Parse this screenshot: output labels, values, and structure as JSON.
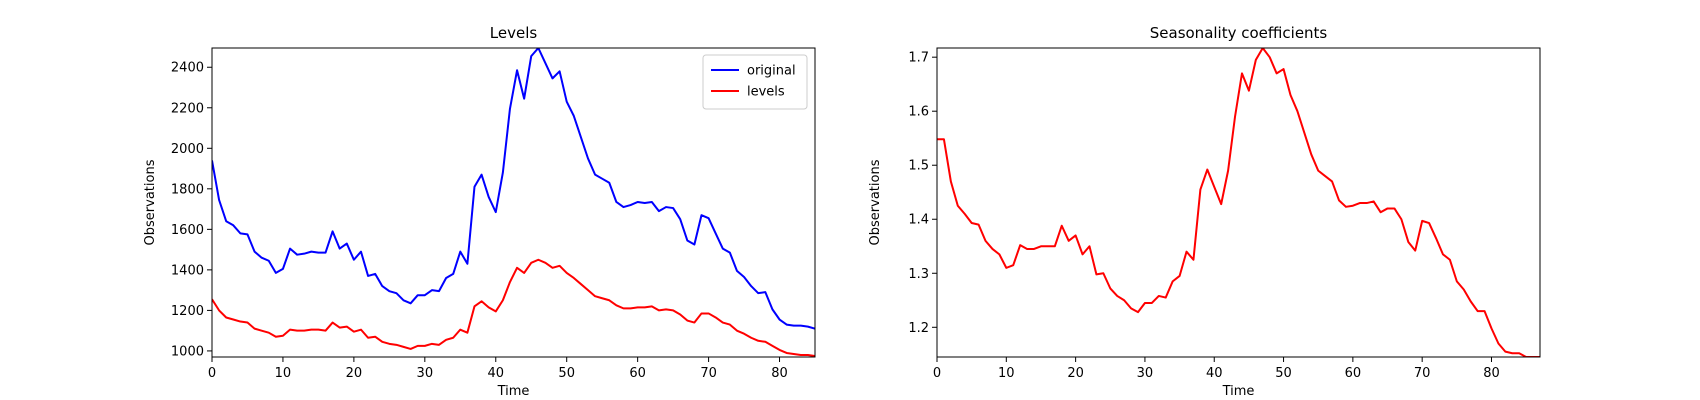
{
  "chart_data": [
    {
      "type": "line",
      "title": "Levels",
      "xlabel": "Time",
      "ylabel": "Observations",
      "xlim": [
        0,
        85
      ],
      "ylim": [
        970,
        2495
      ],
      "xticks": [
        0,
        10,
        20,
        30,
        40,
        50,
        60,
        70,
        80
      ],
      "yticks": [
        1000,
        1200,
        1400,
        1600,
        1800,
        2000,
        2200,
        2400
      ],
      "grid": false,
      "legend": "top-right",
      "series": [
        {
          "name": "original",
          "color": "#0000ff",
          "x": [
            0,
            1,
            2,
            3,
            4,
            5,
            6,
            7,
            8,
            9,
            10,
            11,
            12,
            13,
            14,
            15,
            16,
            17,
            18,
            19,
            20,
            21,
            22,
            23,
            24,
            25,
            26,
            27,
            28,
            29,
            30,
            31,
            32,
            33,
            34,
            35,
            36,
            37,
            38,
            39,
            40,
            41,
            42,
            43,
            44,
            45,
            46,
            47,
            48,
            49,
            50,
            51,
            52,
            53,
            54,
            55,
            56,
            57,
            58,
            59,
            60,
            61,
            62,
            63,
            64,
            65,
            66,
            67,
            68,
            69,
            70,
            71,
            72,
            73,
            74,
            75,
            76,
            77,
            78,
            79,
            80,
            81,
            82,
            83,
            84,
            85
          ],
          "values": [
            1940,
            1745,
            1640,
            1620,
            1580,
            1575,
            1490,
            1460,
            1445,
            1385,
            1405,
            1505,
            1475,
            1480,
            1490,
            1485,
            1485,
            1590,
            1505,
            1530,
            1450,
            1490,
            1370,
            1380,
            1320,
            1295,
            1285,
            1250,
            1235,
            1275,
            1275,
            1300,
            1295,
            1360,
            1380,
            1490,
            1430,
            1810,
            1870,
            1760,
            1685,
            1880,
            2195,
            2385,
            2245,
            2455,
            2495,
            2420,
            2345,
            2380,
            2230,
            2160,
            2055,
            1950,
            1870,
            1850,
            1830,
            1735,
            1710,
            1720,
            1735,
            1730,
            1735,
            1690,
            1710,
            1705,
            1650,
            1545,
            1525,
            1670,
            1655,
            1580,
            1505,
            1485,
            1395,
            1365,
            1320,
            1285,
            1290,
            1205,
            1155,
            1130,
            1125,
            1125,
            1120,
            1110
          ]
        },
        {
          "name": "levels",
          "color": "#ff0000",
          "x": [
            0,
            1,
            2,
            3,
            4,
            5,
            6,
            7,
            8,
            9,
            10,
            11,
            12,
            13,
            14,
            15,
            16,
            17,
            18,
            19,
            20,
            21,
            22,
            23,
            24,
            25,
            26,
            27,
            28,
            29,
            30,
            31,
            32,
            33,
            34,
            35,
            36,
            37,
            38,
            39,
            40,
            41,
            42,
            43,
            44,
            45,
            46,
            47,
            48,
            49,
            50,
            51,
            52,
            53,
            54,
            55,
            56,
            57,
            58,
            59,
            60,
            61,
            62,
            63,
            64,
            65,
            66,
            67,
            68,
            69,
            70,
            71,
            72,
            73,
            74,
            75,
            76,
            77,
            78,
            79,
            80,
            81,
            82,
            83,
            84,
            85
          ],
          "values": [
            1255,
            1200,
            1165,
            1155,
            1145,
            1140,
            1110,
            1100,
            1090,
            1070,
            1075,
            1105,
            1100,
            1100,
            1105,
            1105,
            1100,
            1140,
            1115,
            1120,
            1095,
            1105,
            1065,
            1070,
            1045,
            1035,
            1030,
            1020,
            1010,
            1025,
            1025,
            1035,
            1030,
            1055,
            1065,
            1105,
            1090,
            1220,
            1245,
            1215,
            1195,
            1250,
            1340,
            1410,
            1385,
            1435,
            1450,
            1435,
            1410,
            1420,
            1385,
            1360,
            1330,
            1300,
            1270,
            1260,
            1250,
            1225,
            1210,
            1210,
            1215,
            1215,
            1220,
            1200,
            1205,
            1200,
            1180,
            1150,
            1140,
            1185,
            1185,
            1165,
            1140,
            1130,
            1100,
            1085,
            1065,
            1050,
            1045,
            1025,
            1005,
            990,
            985,
            980,
            980,
            975
          ]
        }
      ]
    },
    {
      "type": "line",
      "title": "Seasonality coefficients",
      "xlabel": "Time",
      "ylabel": "Observations",
      "xlim": [
        0,
        87
      ],
      "ylim": [
        1.145,
        1.717
      ],
      "xticks": [
        0,
        10,
        20,
        30,
        40,
        50,
        60,
        70,
        80
      ],
      "yticks": [
        1.2,
        1.3,
        1.4,
        1.5,
        1.6,
        1.7
      ],
      "grid": false,
      "series": [
        {
          "color": "#ff0000",
          "x": [
            0,
            1,
            2,
            3,
            4,
            5,
            6,
            7,
            8,
            9,
            10,
            11,
            12,
            13,
            14,
            15,
            16,
            17,
            18,
            19,
            20,
            21,
            22,
            23,
            24,
            25,
            26,
            27,
            28,
            29,
            30,
            31,
            32,
            33,
            34,
            35,
            36,
            37,
            38,
            39,
            40,
            41,
            42,
            43,
            44,
            45,
            46,
            47,
            48,
            49,
            50,
            51,
            52,
            53,
            54,
            55,
            56,
            57,
            58,
            59,
            60,
            61,
            62,
            63,
            64,
            65,
            66,
            67,
            68,
            69,
            70,
            71,
            72,
            73,
            74,
            75,
            76,
            77,
            78,
            79,
            80,
            81,
            82,
            83,
            84,
            85,
            86,
            87
          ],
          "values": [
            1.548,
            1.548,
            1.47,
            1.425,
            1.41,
            1.393,
            1.39,
            1.36,
            1.345,
            1.335,
            1.31,
            1.315,
            1.352,
            1.345,
            1.345,
            1.35,
            1.35,
            1.35,
            1.388,
            1.36,
            1.37,
            1.335,
            1.35,
            1.298,
            1.3,
            1.272,
            1.258,
            1.25,
            1.235,
            1.228,
            1.245,
            1.245,
            1.258,
            1.255,
            1.285,
            1.295,
            1.34,
            1.325,
            1.455,
            1.492,
            1.46,
            1.428,
            1.49,
            1.59,
            1.67,
            1.638,
            1.695,
            1.717,
            1.7,
            1.67,
            1.678,
            1.63,
            1.6,
            1.56,
            1.52,
            1.49,
            1.48,
            1.47,
            1.435,
            1.423,
            1.425,
            1.43,
            1.43,
            1.433,
            1.413,
            1.42,
            1.42,
            1.4,
            1.358,
            1.342,
            1.397,
            1.393,
            1.365,
            1.335,
            1.325,
            1.285,
            1.27,
            1.248,
            1.23,
            1.23,
            1.198,
            1.17,
            1.155,
            1.152,
            1.152,
            1.145,
            1.145,
            1.145
          ]
        }
      ]
    }
  ]
}
